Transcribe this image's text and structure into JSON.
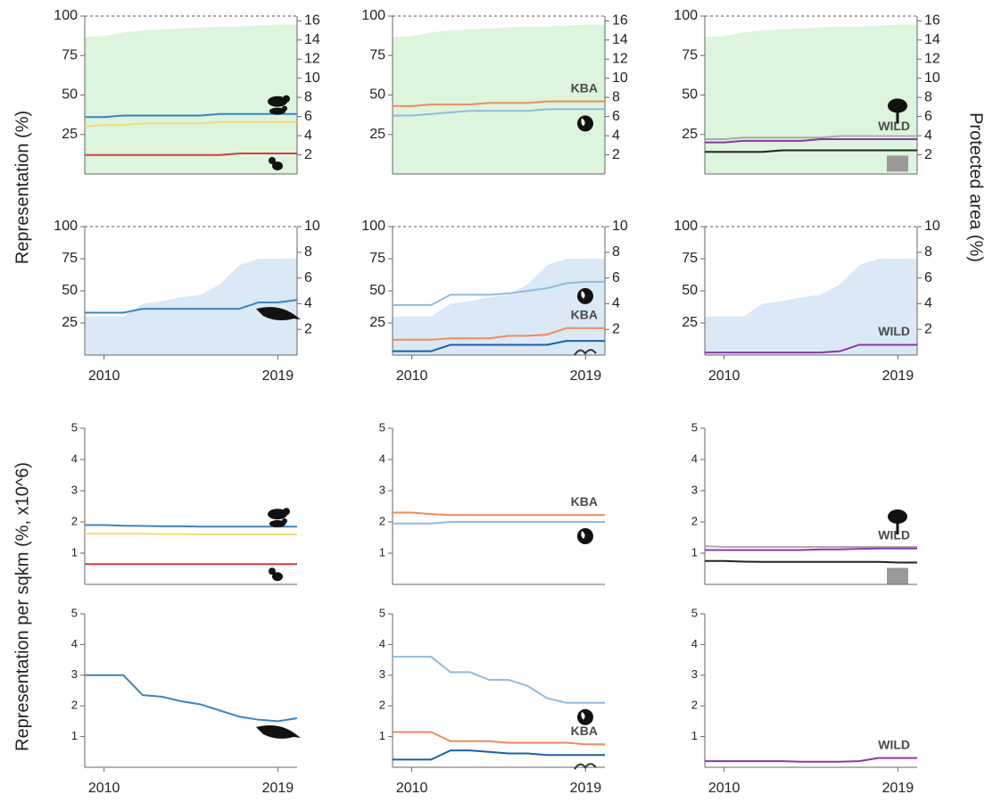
{
  "axis_labels": {
    "representation": "Representation (%)",
    "protected_area": "Protected area (%)",
    "per_sqkm": "Representation per sqkm (%, x10^6)"
  },
  "chart_data": [
    {
      "type": "line",
      "x": [
        2009,
        2010,
        2011,
        2012,
        2013,
        2014,
        2015,
        2016,
        2017,
        2018,
        2019,
        2020
      ],
      "xlim": [
        2009,
        2020
      ],
      "ylim": [
        0,
        100
      ],
      "yticks": [
        25,
        50,
        75,
        100
      ],
      "y2lim": [
        0,
        16.5
      ],
      "y2ticks": [
        2,
        4,
        6,
        8,
        10,
        12,
        14,
        16
      ],
      "series": [
        {
          "axis": "y2",
          "color": "#dcf5dc",
          "values": [
            14.3,
            14.4,
            14.8,
            15.0,
            15.1,
            15.2,
            15.3,
            15.4,
            15.4,
            15.5,
            15.6,
            15.6
          ]
        },
        {
          "color": "#3b84c0",
          "icon": "bear",
          "values": [
            36,
            36,
            37,
            37,
            37,
            37,
            37,
            38,
            38,
            38,
            38,
            38
          ]
        },
        {
          "color": "#f5d77a",
          "icon": "bird",
          "values": [
            30,
            31,
            31,
            32,
            32,
            32,
            32,
            33,
            33,
            33,
            33,
            33
          ]
        },
        {
          "color": "#d83b3b",
          "icon": "squirrel",
          "values": [
            12,
            12,
            12,
            12,
            12,
            12,
            12,
            12,
            13,
            13,
            13,
            13
          ]
        }
      ]
    },
    {
      "type": "line",
      "x": [
        2009,
        2010,
        2011,
        2012,
        2013,
        2014,
        2015,
        2016,
        2017,
        2018,
        2019,
        2020
      ],
      "xlim": [
        2009,
        2020
      ],
      "ylim": [
        0,
        100
      ],
      "yticks": [
        25,
        50,
        75,
        100
      ],
      "y2lim": [
        0,
        16.5
      ],
      "y2ticks": [
        2,
        4,
        6,
        8,
        10,
        12,
        14,
        16
      ],
      "series": [
        {
          "axis": "y2",
          "color": "#dcf5dc",
          "values": [
            14.3,
            14.4,
            14.8,
            15.0,
            15.1,
            15.2,
            15.3,
            15.4,
            15.4,
            15.5,
            15.6,
            15.6
          ]
        },
        {
          "name": "KBA",
          "color": "#f08a5d",
          "values": [
            43,
            43,
            44,
            44,
            44,
            45,
            45,
            45,
            46,
            46,
            46,
            46
          ]
        },
        {
          "color": "#8fbbe0",
          "icon": "globe",
          "values": [
            37,
            37,
            38,
            39,
            40,
            40,
            40,
            40,
            41,
            41,
            41,
            41
          ]
        }
      ]
    },
    {
      "type": "line",
      "x": [
        2009,
        2010,
        2011,
        2012,
        2013,
        2014,
        2015,
        2016,
        2017,
        2018,
        2019,
        2020
      ],
      "xlim": [
        2009,
        2020
      ],
      "ylim": [
        0,
        100
      ],
      "yticks": [
        25,
        50,
        75,
        100
      ],
      "y2lim": [
        0,
        16.5
      ],
      "y2ticks": [
        2,
        4,
        6,
        8,
        10,
        12,
        14,
        16
      ],
      "series": [
        {
          "axis": "y2",
          "color": "#dcf5dc",
          "values": [
            14.3,
            14.4,
            14.8,
            15.0,
            15.1,
            15.2,
            15.3,
            15.4,
            15.4,
            15.5,
            15.6,
            15.6
          ]
        },
        {
          "color": "#aaaaaa",
          "icon": "tree",
          "values": [
            22,
            22,
            23,
            23,
            23,
            23,
            23,
            24,
            24,
            24,
            24,
            24
          ]
        },
        {
          "name": "WILD",
          "color": "#8a36a8",
          "values": [
            20,
            20,
            21,
            21,
            21,
            21,
            22,
            22,
            22,
            22,
            22,
            22
          ]
        },
        {
          "color": "#222222",
          "icon": "photo",
          "values": [
            14,
            14,
            14,
            14,
            15,
            15,
            15,
            15,
            15,
            15,
            15,
            15
          ]
        }
      ]
    },
    {
      "type": "line",
      "x": [
        2009,
        2010,
        2011,
        2012,
        2013,
        2014,
        2015,
        2016,
        2017,
        2018,
        2019,
        2020
      ],
      "xlim": [
        2009,
        2020
      ],
      "xticks": [
        2010,
        2019
      ],
      "ylim": [
        0,
        100
      ],
      "yticks": [
        25,
        50,
        75,
        100
      ],
      "y2lim": [
        0,
        10
      ],
      "y2ticks": [
        2,
        4,
        6,
        8,
        10
      ],
      "series": [
        {
          "axis": "y2",
          "color": "#dbe9f6",
          "values": [
            3,
            3,
            3,
            4,
            4.2,
            4.5,
            4.7,
            5.5,
            7,
            7.5,
            7.5,
            7.5
          ]
        },
        {
          "color": "#3b84c0",
          "icon": "whale",
          "values": [
            33,
            33,
            33,
            36,
            36,
            36,
            36,
            36,
            36,
            41,
            41,
            43
          ]
        }
      ]
    },
    {
      "type": "line",
      "x": [
        2009,
        2010,
        2011,
        2012,
        2013,
        2014,
        2015,
        2016,
        2017,
        2018,
        2019,
        2020
      ],
      "xlim": [
        2009,
        2020
      ],
      "xticks": [
        2010,
        2019
      ],
      "ylim": [
        0,
        100
      ],
      "yticks": [
        25,
        50,
        75,
        100
      ],
      "y2lim": [
        0,
        10
      ],
      "y2ticks": [
        2,
        4,
        6,
        8,
        10
      ],
      "series": [
        {
          "axis": "y2",
          "color": "#dbe9f6",
          "values": [
            3,
            3,
            3,
            4,
            4.2,
            4.5,
            4.7,
            5.5,
            7,
            7.5,
            7.5,
            7.5
          ]
        },
        {
          "color": "#8fbbe0",
          "icon": "globe",
          "values": [
            39,
            39,
            39,
            47,
            47,
            47,
            48,
            50,
            52,
            56,
            57,
            57
          ]
        },
        {
          "name": "KBA",
          "color": "#f08a5d",
          "values": [
            12,
            12,
            12,
            13,
            13,
            13,
            15,
            15,
            16,
            21,
            21,
            21
          ]
        },
        {
          "color": "#1a5fa8",
          "icon": "wave",
          "values": [
            3,
            3,
            3,
            8,
            8,
            8,
            8,
            8,
            8,
            11,
            11,
            11
          ]
        }
      ]
    },
    {
      "type": "line",
      "x": [
        2009,
        2010,
        2011,
        2012,
        2013,
        2014,
        2015,
        2016,
        2017,
        2018,
        2019,
        2020
      ],
      "xlim": [
        2009,
        2020
      ],
      "xticks": [
        2010,
        2019
      ],
      "ylim": [
        0,
        100
      ],
      "yticks": [
        25,
        50,
        75,
        100
      ],
      "y2lim": [
        0,
        10
      ],
      "y2ticks": [
        2,
        4,
        6,
        8,
        10
      ],
      "series": [
        {
          "axis": "y2",
          "color": "#dbe9f6",
          "values": [
            3,
            3,
            3,
            4,
            4.2,
            4.5,
            4.7,
            5.5,
            7,
            7.5,
            7.5,
            7.5
          ]
        },
        {
          "name": "WILD",
          "color": "#8a36a8",
          "values": [
            2,
            2,
            2,
            2,
            2,
            2,
            2,
            3,
            8,
            8,
            8,
            8
          ]
        }
      ]
    },
    {
      "type": "line",
      "x": [
        2009,
        2010,
        2011,
        2012,
        2013,
        2014,
        2015,
        2016,
        2017,
        2018,
        2019,
        2020
      ],
      "xlim": [
        2009,
        2020
      ],
      "ylim": [
        0,
        5
      ],
      "yticks": [
        1,
        2,
        3,
        4,
        5
      ],
      "series": [
        {
          "color": "#3b84c0",
          "icon": "bear",
          "values": [
            1.9,
            1.9,
            1.88,
            1.87,
            1.86,
            1.86,
            1.85,
            1.85,
            1.85,
            1.85,
            1.85,
            1.85
          ]
        },
        {
          "color": "#f5d77a",
          "icon": "bird",
          "values": [
            1.62,
            1.62,
            1.62,
            1.62,
            1.61,
            1.61,
            1.6,
            1.6,
            1.6,
            1.6,
            1.6,
            1.6
          ]
        },
        {
          "color": "#d83b3b",
          "icon": "squirrel",
          "values": [
            0.65,
            0.65,
            0.65,
            0.65,
            0.65,
            0.65,
            0.65,
            0.65,
            0.65,
            0.65,
            0.65,
            0.65
          ]
        }
      ]
    },
    {
      "type": "line",
      "x": [
        2009,
        2010,
        2011,
        2012,
        2013,
        2014,
        2015,
        2016,
        2017,
        2018,
        2019,
        2020
      ],
      "xlim": [
        2009,
        2020
      ],
      "ylim": [
        0,
        5
      ],
      "yticks": [
        1,
        2,
        3,
        4,
        5
      ],
      "series": [
        {
          "name": "KBA",
          "color": "#f08a5d",
          "values": [
            2.3,
            2.3,
            2.25,
            2.22,
            2.22,
            2.22,
            2.22,
            2.22,
            2.22,
            2.22,
            2.22,
            2.22
          ]
        },
        {
          "color": "#8fbbe0",
          "icon": "globe",
          "values": [
            1.95,
            1.95,
            1.95,
            2.0,
            2.0,
            2.0,
            2.0,
            2.0,
            2.0,
            2.0,
            2.0,
            2.0
          ]
        }
      ]
    },
    {
      "type": "line",
      "x": [
        2009,
        2010,
        2011,
        2012,
        2013,
        2014,
        2015,
        2016,
        2017,
        2018,
        2019,
        2020
      ],
      "xlim": [
        2009,
        2020
      ],
      "ylim": [
        0,
        5
      ],
      "yticks": [
        1,
        2,
        3,
        4,
        5
      ],
      "series": [
        {
          "color": "#aaaaaa",
          "icon": "tree",
          "values": [
            1.22,
            1.2,
            1.2,
            1.2,
            1.2,
            1.2,
            1.2,
            1.2,
            1.2,
            1.2,
            1.2,
            1.2
          ]
        },
        {
          "name": "WILD",
          "color": "#8a36a8",
          "values": [
            1.1,
            1.1,
            1.1,
            1.1,
            1.1,
            1.1,
            1.12,
            1.12,
            1.14,
            1.15,
            1.15,
            1.15
          ]
        },
        {
          "color": "#222222",
          "icon": "photo",
          "values": [
            0.75,
            0.75,
            0.73,
            0.72,
            0.72,
            0.72,
            0.72,
            0.72,
            0.72,
            0.72,
            0.7,
            0.7
          ]
        }
      ]
    },
    {
      "type": "line",
      "x": [
        2009,
        2010,
        2011,
        2012,
        2013,
        2014,
        2015,
        2016,
        2017,
        2018,
        2019,
        2020
      ],
      "xlim": [
        2009,
        2020
      ],
      "xticks": [
        2010,
        2019
      ],
      "ylim": [
        0,
        5
      ],
      "yticks": [
        1,
        2,
        3,
        4,
        5
      ],
      "series": [
        {
          "color": "#3b84c0",
          "icon": "whale",
          "values": [
            3.0,
            3.0,
            3.0,
            2.35,
            2.3,
            2.15,
            2.05,
            1.85,
            1.65,
            1.55,
            1.5,
            1.6
          ]
        }
      ]
    },
    {
      "type": "line",
      "x": [
        2009,
        2010,
        2011,
        2012,
        2013,
        2014,
        2015,
        2016,
        2017,
        2018,
        2019,
        2020
      ],
      "xlim": [
        2009,
        2020
      ],
      "xticks": [
        2010,
        2019
      ],
      "ylim": [
        0,
        5
      ],
      "yticks": [
        1,
        2,
        3,
        4,
        5
      ],
      "series": [
        {
          "color": "#8fbbe0",
          "icon": "globe",
          "values": [
            3.6,
            3.6,
            3.6,
            3.1,
            3.1,
            2.85,
            2.85,
            2.65,
            2.25,
            2.1,
            2.1,
            2.1
          ]
        },
        {
          "name": "KBA",
          "color": "#f08a5d",
          "values": [
            1.15,
            1.15,
            1.15,
            0.85,
            0.85,
            0.85,
            0.8,
            0.8,
            0.8,
            0.8,
            0.75,
            0.75
          ]
        },
        {
          "color": "#1a5fa8",
          "icon": "wave",
          "values": [
            0.25,
            0.25,
            0.25,
            0.55,
            0.55,
            0.5,
            0.45,
            0.45,
            0.4,
            0.4,
            0.4,
            0.4
          ]
        }
      ]
    },
    {
      "type": "line",
      "x": [
        2009,
        2010,
        2011,
        2012,
        2013,
        2014,
        2015,
        2016,
        2017,
        2018,
        2019,
        2020
      ],
      "xlim": [
        2009,
        2020
      ],
      "xticks": [
        2010,
        2019
      ],
      "ylim": [
        0,
        5
      ],
      "yticks": [
        1,
        2,
        3,
        4,
        5
      ],
      "series": [
        {
          "name": "WILD",
          "color": "#8a36a8",
          "values": [
            0.2,
            0.2,
            0.2,
            0.2,
            0.2,
            0.18,
            0.18,
            0.18,
            0.2,
            0.3,
            0.3,
            0.3
          ]
        }
      ]
    }
  ]
}
